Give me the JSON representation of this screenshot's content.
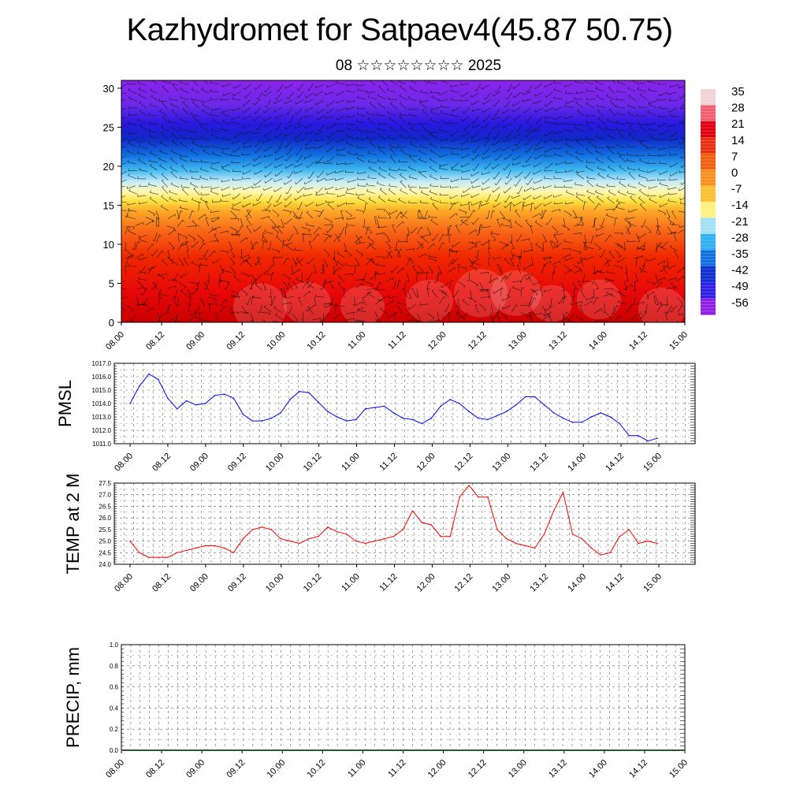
{
  "title": "Kazhydromet for Satpaev4(45.87 50.75)",
  "subtitle": "08 ☆☆☆☆☆☆☆☆ 2025",
  "colors": {
    "pmsl": "#0000ff",
    "temp": "#ff0000"
  },
  "chart_data": [
    {
      "id": "vertical-section",
      "type": "heatmap",
      "x_ticks": [
        "08.00",
        "08.12",
        "09.00",
        "09.12",
        "10.00",
        "10.12",
        "11.00",
        "11.12",
        "12.00",
        "12.12",
        "13.00",
        "13.12",
        "14.00",
        "14.12",
        "15.00"
      ],
      "y_ticks": [
        "0",
        "5",
        "10",
        "15",
        "20",
        "25",
        "30"
      ],
      "ylim": [
        0,
        31
      ],
      "colorbar": {
        "labels": [
          "35",
          "28",
          "21",
          "14",
          "7",
          "0",
          "-7",
          "-14",
          "-21",
          "-28",
          "-35",
          "-42",
          "-49",
          "-56"
        ],
        "colors": [
          "#f4d2d6",
          "#f06070",
          "#e00010",
          "#e83010",
          "#f06010",
          "#f89020",
          "#fcc030",
          "#fff080",
          "#a0e0f8",
          "#30b0f0",
          "#1070e0",
          "#1030d0",
          "#3020e8",
          "#9020e8"
        ]
      },
      "overlay": "wind barbs"
    },
    {
      "id": "pmsl",
      "type": "line",
      "ylabel": "PMSL",
      "ylim": [
        1011.0,
        1017.0
      ],
      "y_ticks": [
        "1011.0",
        "1012.0",
        "1013.0",
        "1014.0",
        "1015.0",
        "1016.0",
        "1017.0"
      ],
      "x_ticks": [
        "08.00",
        "08.12",
        "09.00",
        "09.12",
        "10.00",
        "10.12",
        "11.00",
        "11.12",
        "12.00",
        "12.12",
        "13.00",
        "13.12",
        "14.00",
        "14.12",
        "15.00"
      ],
      "values": [
        1014.0,
        1015.3,
        1016.2,
        1015.8,
        1014.4,
        1013.6,
        1014.2,
        1013.9,
        1014.0,
        1014.6,
        1014.7,
        1014.4,
        1013.2,
        1012.7,
        1012.7,
        1012.9,
        1013.3,
        1014.3,
        1014.9,
        1014.8,
        1014.1,
        1013.4,
        1013.0,
        1012.7,
        1012.8,
        1013.6,
        1013.7,
        1013.8,
        1013.3,
        1012.9,
        1012.8,
        1012.5,
        1012.9,
        1013.8,
        1014.3,
        1014.0,
        1013.4,
        1012.9,
        1012.8,
        1013.1,
        1013.4,
        1013.9,
        1014.5,
        1014.5,
        1013.9,
        1013.3,
        1012.9,
        1012.6,
        1012.6,
        1013.0,
        1013.3,
        1013.0,
        1012.5,
        1011.6,
        1011.6,
        1011.2,
        1011.4
      ]
    },
    {
      "id": "temp",
      "type": "line",
      "ylabel": "TEMP at 2 M",
      "ylim": [
        24.0,
        27.5
      ],
      "y_ticks": [
        "24.0",
        "24.5",
        "25.0",
        "25.5",
        "26.0",
        "26.5",
        "27.0",
        "27.5"
      ],
      "x_ticks": [
        "08.00",
        "08.12",
        "09.00",
        "09.12",
        "10.00",
        "10.12",
        "11.00",
        "11.12",
        "12.00",
        "12.12",
        "13.00",
        "13.12",
        "14.00",
        "14.12",
        "15.00"
      ],
      "values": [
        25.0,
        24.5,
        24.3,
        24.3,
        24.3,
        24.5,
        24.6,
        24.7,
        24.8,
        24.8,
        24.7,
        24.5,
        25.1,
        25.5,
        25.6,
        25.5,
        25.1,
        25.0,
        24.9,
        25.1,
        25.2,
        25.6,
        25.4,
        25.3,
        25.0,
        24.9,
        25.0,
        25.1,
        25.2,
        25.5,
        26.3,
        25.8,
        25.7,
        25.2,
        25.2,
        26.9,
        27.4,
        26.9,
        26.9,
        25.5,
        25.1,
        24.9,
        24.8,
        24.7,
        25.3,
        26.3,
        27.1,
        25.3,
        25.1,
        24.7,
        24.4,
        24.5,
        25.2,
        25.5,
        24.9,
        25.0,
        24.9
      ]
    },
    {
      "id": "precip",
      "type": "line",
      "ylabel": "PRECIP, mm",
      "ylim": [
        0.0,
        1.0
      ],
      "y_ticks": [
        "0.0",
        "0.2",
        "0.4",
        "0.6",
        "0.8",
        "1.0"
      ],
      "x_ticks": [
        "08.00",
        "08.12",
        "09.00",
        "09.12",
        "10.00",
        "10.12",
        "11.00",
        "11.12",
        "12.00",
        "12.12",
        "13.00",
        "13.12",
        "14.00",
        "14.12",
        "15.00"
      ],
      "values": []
    }
  ]
}
